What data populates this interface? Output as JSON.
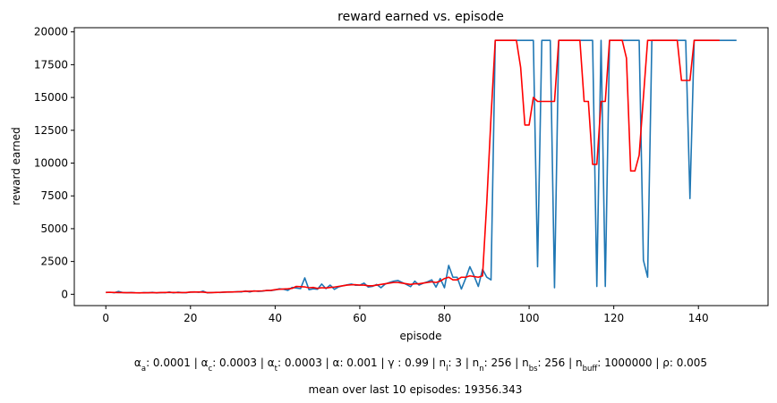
{
  "chart_data": {
    "type": "line",
    "title": "reward earned vs. episode",
    "x_label": "episode",
    "y_label": "reward earned",
    "x": [
      0,
      1,
      2,
      3,
      4,
      5,
      6,
      7,
      8,
      9,
      10,
      11,
      12,
      13,
      14,
      15,
      16,
      17,
      18,
      19,
      20,
      21,
      22,
      23,
      24,
      25,
      26,
      27,
      28,
      29,
      30,
      31,
      32,
      33,
      34,
      35,
      36,
      37,
      38,
      39,
      40,
      41,
      42,
      43,
      44,
      45,
      46,
      47,
      48,
      49,
      50,
      51,
      52,
      53,
      54,
      55,
      56,
      57,
      58,
      59,
      60,
      61,
      62,
      63,
      64,
      65,
      66,
      67,
      68,
      69,
      70,
      71,
      72,
      73,
      74,
      75,
      76,
      77,
      78,
      79,
      80,
      81,
      82,
      83,
      84,
      85,
      86,
      87,
      88,
      89,
      90,
      91,
      92,
      93,
      94,
      95,
      96,
      97,
      98,
      99,
      100,
      101,
      102,
      103,
      104,
      105,
      106,
      107,
      108,
      109,
      110,
      111,
      112,
      113,
      114,
      115,
      116,
      117,
      118,
      119,
      120,
      121,
      122,
      123,
      124,
      125,
      126,
      127,
      128,
      129,
      130,
      131,
      132,
      133,
      134,
      135,
      136,
      137,
      138,
      139,
      140,
      141,
      142,
      143,
      144,
      145,
      146,
      147,
      148,
      149
    ],
    "series": [
      {
        "color": "#1f77b4",
        "values": [
          150,
          150,
          120,
          220,
          130,
          120,
          140,
          110,
          100,
          130,
          110,
          150,
          100,
          140,
          120,
          170,
          110,
          160,
          130,
          120,
          170,
          180,
          150,
          240,
          110,
          130,
          150,
          140,
          160,
          180,
          170,
          200,
          180,
          250,
          180,
          260,
          220,
          240,
          300,
          280,
          330,
          420,
          380,
          300,
          520,
          480,
          430,
          1250,
          350,
          420,
          380,
          780,
          430,
          700,
          380,
          560,
          650,
          720,
          780,
          690,
          700,
          850,
          550,
          600,
          750,
          500,
          780,
          900,
          1000,
          1050,
          900,
          750,
          580,
          1000,
          700,
          850,
          950,
          1100,
          550,
          1200,
          500,
          2200,
          1300,
          1300,
          400,
          1200,
          2100,
          1400,
          600,
          1900,
          1300,
          1100,
          19356,
          19356,
          19356,
          19356,
          19356,
          19356,
          19356,
          19356,
          19356,
          19356,
          2100,
          19356,
          19356,
          19356,
          500,
          19356,
          19356,
          19356,
          19356,
          19356,
          19356,
          19356,
          19356,
          19356,
          600,
          19356,
          600,
          19356,
          19356,
          19356,
          19356,
          19356,
          19356,
          19356,
          19356,
          2600,
          1300,
          19356,
          19356,
          19356,
          19356,
          19356,
          19356,
          19356,
          19356,
          19356,
          7300,
          19356,
          19356,
          19356,
          19356,
          19356,
          19356,
          19356,
          19356,
          19356,
          19356,
          19356
        ]
      },
      {
        "color": "red",
        "values": [
          140,
          150,
          140,
          130,
          130,
          120,
          120,
          110,
          110,
          110,
          120,
          120,
          120,
          130,
          140,
          140,
          140,
          130,
          130,
          140,
          160,
          170,
          170,
          160,
          130,
          130,
          140,
          150,
          160,
          170,
          180,
          190,
          210,
          220,
          230,
          240,
          250,
          260,
          280,
          300,
          350,
          380,
          400,
          420,
          450,
          600,
          580,
          560,
          500,
          520,
          450,
          500,
          480,
          520,
          550,
          600,
          650,
          700,
          720,
          730,
          700,
          700,
          650,
          650,
          700,
          750,
          800,
          850,
          900,
          900,
          850,
          800,
          750,
          800,
          800,
          850,
          900,
          950,
          900,
          1000,
          1200,
          1300,
          1100,
          1100,
          1300,
          1300,
          1400,
          1350,
          1300,
          1400,
          7000,
          13500,
          19356,
          19356,
          19356,
          19356,
          19356,
          19356,
          17300,
          12900,
          12900,
          15000,
          14700,
          14700,
          14700,
          14700,
          14700,
          19356,
          19356,
          19356,
          19356,
          19356,
          19356,
          14700,
          14700,
          9900,
          9900,
          14700,
          14700,
          19356,
          19356,
          19356,
          19356,
          18000,
          9400,
          9400,
          10600,
          15000,
          19356,
          19356,
          19356,
          19356,
          19356,
          19356,
          19356,
          19356,
          16300,
          16300,
          16300,
          19356,
          19356,
          19356,
          19356,
          19356,
          19356,
          19356,
          null,
          null,
          null,
          null
        ]
      }
    ],
    "xlim": [
      -7.45,
      156.45
    ],
    "ylim": [
      -863,
      20319
    ],
    "xticks": [
      0,
      20,
      40,
      60,
      80,
      100,
      120,
      140
    ],
    "yticks": [
      0,
      2500,
      5000,
      7500,
      10000,
      12500,
      15000,
      17500,
      20000
    ],
    "hyperparameters": {
      "separator": " | ",
      "items": [
        {
          "symbol": "α",
          "sub": "a",
          "text": ": 0.0001"
        },
        {
          "symbol": "α",
          "sub": "c",
          "text": ": 0.0003"
        },
        {
          "symbol": "α",
          "sub": "t",
          "text": ": 0.0003"
        },
        {
          "symbol": "α",
          "text": ": 0.001"
        },
        {
          "symbol": "γ",
          "text": " : 0.99"
        },
        {
          "symbol": "n",
          "sub": "l",
          "text": ": 3"
        },
        {
          "symbol": "n",
          "sub": "n",
          "text": ": 256"
        },
        {
          "symbol": "n",
          "sub": "bs",
          "text": ": 256"
        },
        {
          "symbol": "n",
          "sub": "buff",
          "text": ": 1000000"
        },
        {
          "symbol": "ρ",
          "text": ": 0.005"
        }
      ]
    },
    "footer": "mean over last 10 episodes: 19356.343"
  }
}
